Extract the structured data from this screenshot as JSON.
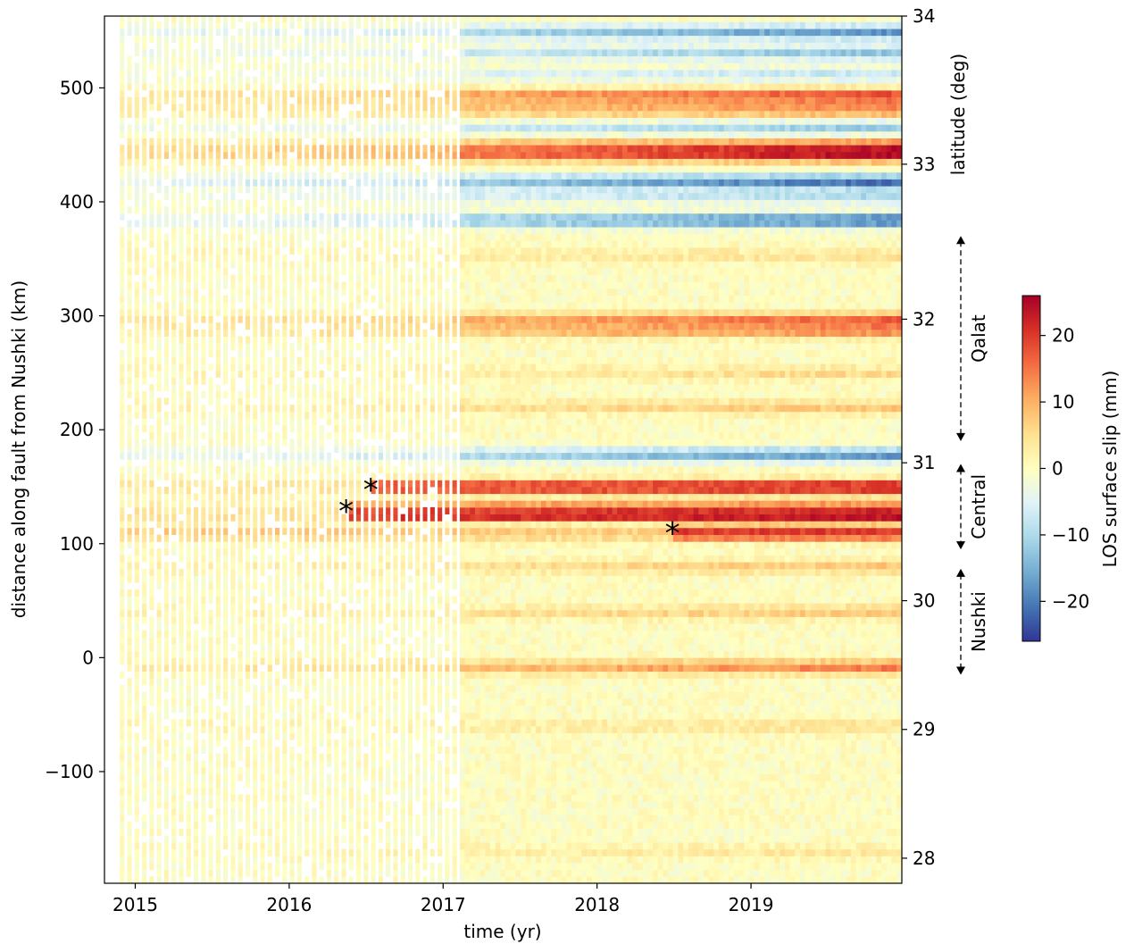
{
  "chart_data": {
    "type": "heatmap",
    "title": "",
    "xlabel": "time (yr)",
    "ylabel": "distance along fault from Nushki (km)",
    "y2label": "latitude (deg)",
    "xlim": [
      2014.8,
      2019.98
    ],
    "ylim": [
      -198,
      563
    ],
    "x_ticks": [
      2015,
      2016,
      2017,
      2018,
      2019
    ],
    "x_tick_labels": [
      "2015",
      "2016",
      "2017",
      "2018",
      "2019"
    ],
    "y_ticks": [
      -100,
      0,
      100,
      200,
      300,
      400,
      500
    ],
    "y_tick_labels": [
      "−100",
      "0",
      "100",
      "200",
      "300",
      "400",
      "500"
    ],
    "y2_ticks": [
      {
        "distance": 563,
        "label": "34"
      },
      {
        "distance": 433,
        "label": "33"
      },
      {
        "distance": 297,
        "label": "32"
      },
      {
        "distance": 171,
        "label": "31"
      },
      {
        "distance": 50,
        "label": "30"
      },
      {
        "distance": -63,
        "label": "29"
      },
      {
        "distance": -176,
        "label": "28"
      }
    ],
    "colorbar": {
      "label": "LOS surface slip (mm)",
      "range": [
        -26,
        26
      ],
      "ticks": [
        -20,
        -10,
        0,
        10,
        20
      ],
      "tick_labels": [
        "−20",
        "−10",
        "0",
        "10",
        "20"
      ],
      "colormap": "RdYlBu_r",
      "colors": [
        "#313695",
        "#4575b4",
        "#74add1",
        "#abd9e9",
        "#e0f3f8",
        "#ffffbf",
        "#fee090",
        "#fdae61",
        "#f46d43",
        "#d73027",
        "#a50026"
      ]
    },
    "segments": [
      {
        "label": "Qalat",
        "from": 370,
        "to": 190
      },
      {
        "label": "Central",
        "from": 170,
        "to": 95
      },
      {
        "label": "Nushki",
        "from": 78,
        "to": -15
      }
    ],
    "earthquake_markers": [
      {
        "time": 2016.37,
        "distance": 128
      },
      {
        "time": 2016.53,
        "distance": 147
      },
      {
        "time": 2018.49,
        "distance": 109
      }
    ],
    "slip_bands": [
      {
        "distance": 549,
        "value": -18
      },
      {
        "distance": 531,
        "value": -13
      },
      {
        "distance": 512,
        "value": -8
      },
      {
        "distance": 493,
        "value": 20
      },
      {
        "distance": 481,
        "value": 14
      },
      {
        "distance": 465,
        "value": -12
      },
      {
        "distance": 449,
        "value": 18
      },
      {
        "distance": 441,
        "value": 22
      },
      {
        "distance": 418,
        "value": -22
      },
      {
        "distance": 405,
        "value": -10
      },
      {
        "distance": 384,
        "value": -22
      },
      {
        "distance": 353,
        "value": 5
      },
      {
        "distance": 297,
        "value": 16
      },
      {
        "distance": 287,
        "value": 14
      },
      {
        "distance": 250,
        "value": 6
      },
      {
        "distance": 220,
        "value": 8
      },
      {
        "distance": 178,
        "value": -18
      },
      {
        "distance": 150,
        "value": 23
      },
      {
        "distance": 134,
        "value": 10
      },
      {
        "distance": 125,
        "value": 24
      },
      {
        "distance": 109,
        "value": 22
      },
      {
        "distance": 80,
        "value": 8
      },
      {
        "distance": 40,
        "value": 8
      },
      {
        "distance": -8,
        "value": 15
      },
      {
        "distance": -60,
        "value": 5
      },
      {
        "distance": -170,
        "value": 4
      }
    ]
  },
  "colors": {
    "background": "#ffffff",
    "axis": "#000000",
    "marker": "#000000"
  }
}
